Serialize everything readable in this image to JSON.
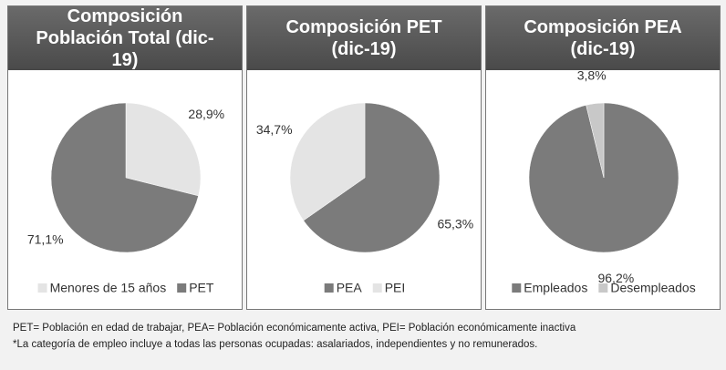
{
  "chart_data": [
    {
      "type": "pie",
      "title": "Composición Población Total (dic-19)",
      "categories": [
        "Menores de 15 años",
        "PET"
      ],
      "values": [
        28.9,
        71.1
      ],
      "value_labels": [
        "28,9%",
        "71,1%"
      ],
      "colors": [
        "#e4e4e4",
        "#7b7b7b"
      ]
    },
    {
      "type": "pie",
      "title": "Composición PET (dic-19)",
      "categories": [
        "PEA",
        "PEI"
      ],
      "values": [
        65.3,
        34.7
      ],
      "value_labels": [
        "65,3%",
        "34,7%"
      ],
      "colors": [
        "#7b7b7b",
        "#e4e4e4"
      ]
    },
    {
      "type": "pie",
      "title": "Composición PEA (dic-19)",
      "categories": [
        "Empleados",
        "Desempleados"
      ],
      "values": [
        96.2,
        3.8
      ],
      "value_labels": [
        "96,2%",
        "3,8%"
      ],
      "colors": [
        "#7b7b7b",
        "#c8c8c8"
      ]
    }
  ],
  "footnotes": [
    "PET= Población en edad de trabajar, PEA= Población económicamente activa, PEI= Población económicamente inactiva",
    "*La categoría de empleo incluye a todas las personas ocupadas: asalariados, independientes y no remunerados."
  ]
}
